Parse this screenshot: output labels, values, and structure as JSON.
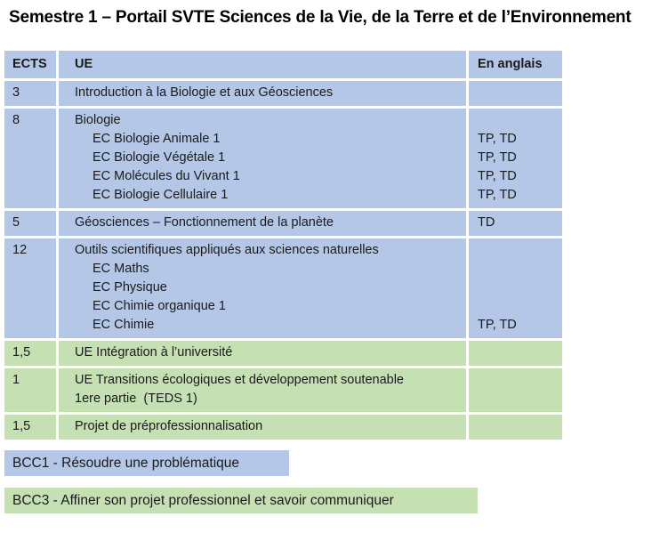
{
  "title": "Semestre 1 – Portail SVTE Sciences de la Vie, de la Terre et de l’Environnement",
  "colors": {
    "row_blue": "#b4c7e7",
    "row_green": "#c5e0b3",
    "text": "#1a1a1a"
  },
  "table": {
    "headers": {
      "ects": "ECTS",
      "ue": "UE",
      "en": "En anglais"
    },
    "rows": [
      {
        "ects": "3",
        "ue_lines": [
          "Introduction à la Biologie et aux Géosciences"
        ],
        "en_lines": [
          ""
        ]
      },
      {
        "ects": "8",
        "ue_lines": [
          "Biologie",
          "EC Biologie Animale 1",
          "EC Biologie Végétale 1",
          "EC Molécules du Vivant 1",
          "EC Biologie Cellulaire 1"
        ],
        "en_lines": [
          "",
          "TP, TD",
          "TP, TD",
          "TP, TD",
          "TP, TD"
        ]
      },
      {
        "ects": "5",
        "ue_lines": [
          "Géosciences – Fonctionnement de la planète"
        ],
        "en_lines": [
          "TD"
        ]
      },
      {
        "ects": "12",
        "ue_lines": [
          "Outils scientifiques appliqués aux sciences naturelles",
          "EC Maths",
          "EC Physique",
          "EC Chimie organique 1",
          "EC Chimie"
        ],
        "en_lines": [
          "",
          "",
          "",
          "",
          "TP, TD"
        ]
      },
      {
        "ects": "1,5",
        "ue_lines": [
          "UE Intégration à l’université"
        ],
        "en_lines": [
          ""
        ]
      },
      {
        "ects": "1",
        "ue_lines": [
          "UE Transitions écologiques et développement soutenable",
          "1ere partie  (TEDS 1)"
        ],
        "en_lines": [
          ""
        ]
      },
      {
        "ects": "1,5",
        "ue_lines": [
          "Projet de préprofessionnalisation"
        ],
        "en_lines": [
          ""
        ]
      }
    ]
  },
  "footers": [
    {
      "label": "BCC1 - Résoudre une problématique",
      "theme": "blue"
    },
    {
      "label": "BCC3 - Affiner son projet professionnel et savoir communiquer",
      "theme": "green"
    }
  ]
}
